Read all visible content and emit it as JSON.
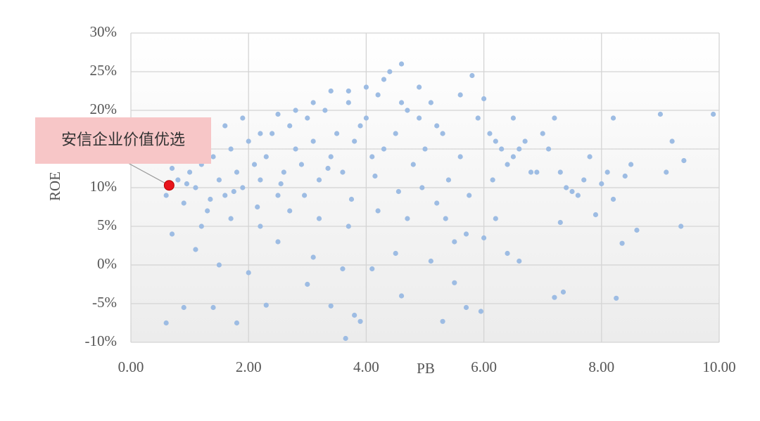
{
  "chart_data": {
    "type": "scatter",
    "x_label": "PB",
    "y_label": "ROE",
    "color": "#9dbce3",
    "grid": true,
    "xlim": [
      0,
      10
    ],
    "ylim": [
      -10,
      30
    ],
    "xticks": [
      {
        "value": 0,
        "label": "0.00"
      },
      {
        "value": 2,
        "label": "2.00"
      },
      {
        "value": 4,
        "label": "4.00"
      },
      {
        "value": 6,
        "label": "6.00"
      },
      {
        "value": 8,
        "label": "8.00"
      },
      {
        "value": 10,
        "label": "10.00"
      }
    ],
    "yticks": [
      {
        "value": -10,
        "label": "-10%"
      },
      {
        "value": -5,
        "label": "-5%"
      },
      {
        "value": 0,
        "label": "0%"
      },
      {
        "value": 5,
        "label": "5%"
      },
      {
        "value": 10,
        "label": "10%"
      },
      {
        "value": 15,
        "label": "15%"
      },
      {
        "value": 20,
        "label": "20%"
      },
      {
        "value": 25,
        "label": "25%"
      },
      {
        "value": 30,
        "label": "30%"
      }
    ],
    "x": [
      0.6,
      0.8,
      0.9,
      1.0,
      1.1,
      1.2,
      1.3,
      1.4,
      1.5,
      1.6,
      1.7,
      1.8,
      1.9,
      2.0,
      2.1,
      2.2,
      2.3,
      2.4,
      2.5,
      2.6,
      2.7,
      2.8,
      2.9,
      3.0,
      3.1,
      3.2,
      3.3,
      3.4,
      3.5,
      3.6,
      3.7,
      3.8,
      3.9,
      4.0,
      4.1,
      4.2,
      4.3,
      4.4,
      4.5,
      4.6,
      4.7,
      4.8,
      4.9,
      5.0,
      5.2,
      5.4,
      5.6,
      5.8,
      6.0,
      6.2,
      6.4,
      6.6,
      6.8,
      7.0,
      7.2,
      7.4,
      7.6,
      7.8,
      8.0,
      8.2,
      8.4,
      8.6,
      9.0,
      9.2,
      9.4,
      9.9,
      8.2,
      7.9,
      7.3,
      6.5,
      0.6,
      0.9,
      1.4,
      1.8,
      2.3,
      3.0,
      3.4,
      3.8,
      3.9,
      4.6,
      5.3,
      5.5,
      5.7,
      5.95,
      7.2,
      7.35,
      8.25,
      8.35,
      9.1,
      9.35,
      3.65,
      1.1,
      1.5,
      2.0,
      2.5,
      3.1,
      3.6,
      4.1,
      4.5,
      5.1,
      5.5,
      6.0,
      6.4,
      6.6,
      0.7,
      1.2,
      1.7,
      2.2,
      2.7,
      3.2,
      3.7,
      4.2,
      4.7,
      5.2,
      5.7,
      6.2,
      0.7,
      1.0,
      1.3,
      1.6,
      1.9,
      2.2,
      2.5,
      2.8,
      3.1,
      3.4,
      3.7,
      4.0,
      4.3,
      4.6,
      4.9,
      5.1,
      5.3,
      5.6,
      5.9,
      6.1,
      6.3,
      6.5,
      6.7,
      6.9,
      7.1,
      7.3,
      7.5,
      7.7,
      8.1,
      8.5,
      0.95,
      1.35,
      1.75,
      2.15,
      2.55,
      2.95,
      3.35,
      3.75,
      4.15,
      4.55,
      4.95,
      5.35,
      5.75,
      6.15
    ],
    "values": [
      9,
      11,
      8,
      12,
      10,
      13,
      7,
      14,
      11,
      9,
      15,
      12,
      10,
      16,
      13,
      11,
      14,
      17,
      9,
      12,
      18,
      15,
      13,
      19,
      16,
      11,
      20,
      14,
      17,
      12,
      21,
      16,
      18,
      19,
      14,
      22,
      15,
      25,
      17,
      26,
      20,
      13,
      23,
      15,
      18,
      11,
      14,
      24.5,
      21.5,
      16,
      13,
      15,
      12,
      17,
      19,
      10,
      9,
      14,
      10.5,
      19,
      11.5,
      4.5,
      19.5,
      16,
      13.5,
      19.5,
      8.5,
      6.5,
      5.5,
      19,
      -7.5,
      -5.5,
      -5.5,
      -7.5,
      -5.2,
      -2.5,
      -5.3,
      -6.5,
      -7.3,
      -4,
      -7.3,
      -2.3,
      -5.5,
      -6,
      -4.2,
      -3.5,
      -4.3,
      2.8,
      12,
      5,
      -9.5,
      2,
      0,
      -1,
      3,
      1,
      -0.5,
      -0.5,
      1.5,
      0.5,
      3,
      3.5,
      1.5,
      0.5,
      4,
      5,
      6,
      5,
      7,
      6,
      5,
      7,
      6,
      8,
      4,
      6,
      12.5,
      14,
      16,
      18,
      19,
      17,
      19.5,
      20,
      21,
      22.5,
      22.5,
      23,
      24,
      21,
      19,
      21,
      17,
      22,
      19,
      17,
      15,
      14,
      16,
      12,
      15,
      12,
      9.5,
      11,
      12,
      13,
      10.5,
      8.5,
      9.5,
      7.5,
      10.5,
      9,
      12.5,
      8.5,
      11.5,
      9.5,
      10,
      6,
      9,
      11
    ],
    "annotation": {
      "text": "安信企业价值优选",
      "x": 0.65,
      "y": 10.3,
      "color": "#e8141c"
    }
  }
}
